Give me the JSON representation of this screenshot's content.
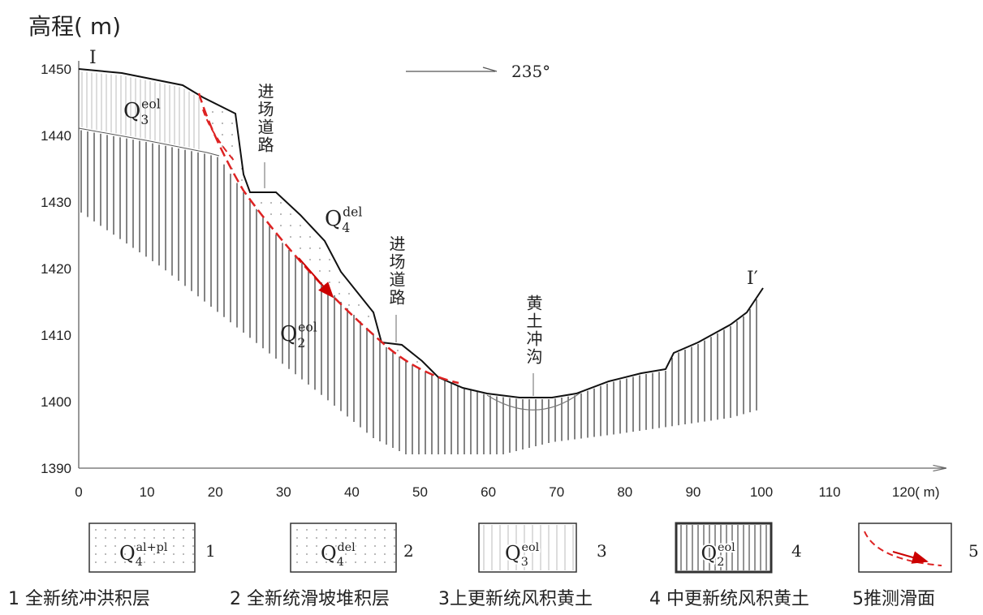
{
  "y_axis_title": "高程( m)",
  "yticks": [
    1450,
    1440,
    1430,
    1420,
    1410,
    1400,
    1390
  ],
  "xticks": [
    0,
    10,
    20,
    30,
    40,
    50,
    60,
    70,
    80,
    90,
    100,
    110,
    {
      "value": 120,
      "label": "120( m)"
    }
  ],
  "section_start": "I",
  "section_end": "I′",
  "direction": "235°",
  "annotations": [
    "进场道路",
    "进场道路",
    "黄土冲沟"
  ],
  "layer_labels": [
    {
      "base": "Q",
      "sub": "3",
      "sup": "eol"
    },
    {
      "base": "Q",
      "sub": "4",
      "sup": "del"
    },
    {
      "base": "Q",
      "sub": "2",
      "sup": "eol"
    }
  ],
  "legend": [
    {
      "symbol": {
        "base": "Q",
        "sub": "4",
        "sup": "al+pl"
      },
      "number": "1"
    },
    {
      "symbol": {
        "base": "Q",
        "sub": "4",
        "sup": "del"
      },
      "number": "2"
    },
    {
      "symbol": {
        "base": "Q",
        "sub": "3",
        "sup": "eol"
      },
      "number": "3"
    },
    {
      "symbol": {
        "base": "Q",
        "sub": "2",
        "sup": "eol"
      },
      "number": "4"
    },
    {
      "number": "5"
    }
  ],
  "caption": [
    "1 全新统冲洪积层",
    "2 全新统滑坡堆积层",
    "3上更新统风积黄土",
    "4 中更新统风积黄土",
    "5推测滑面"
  ]
}
